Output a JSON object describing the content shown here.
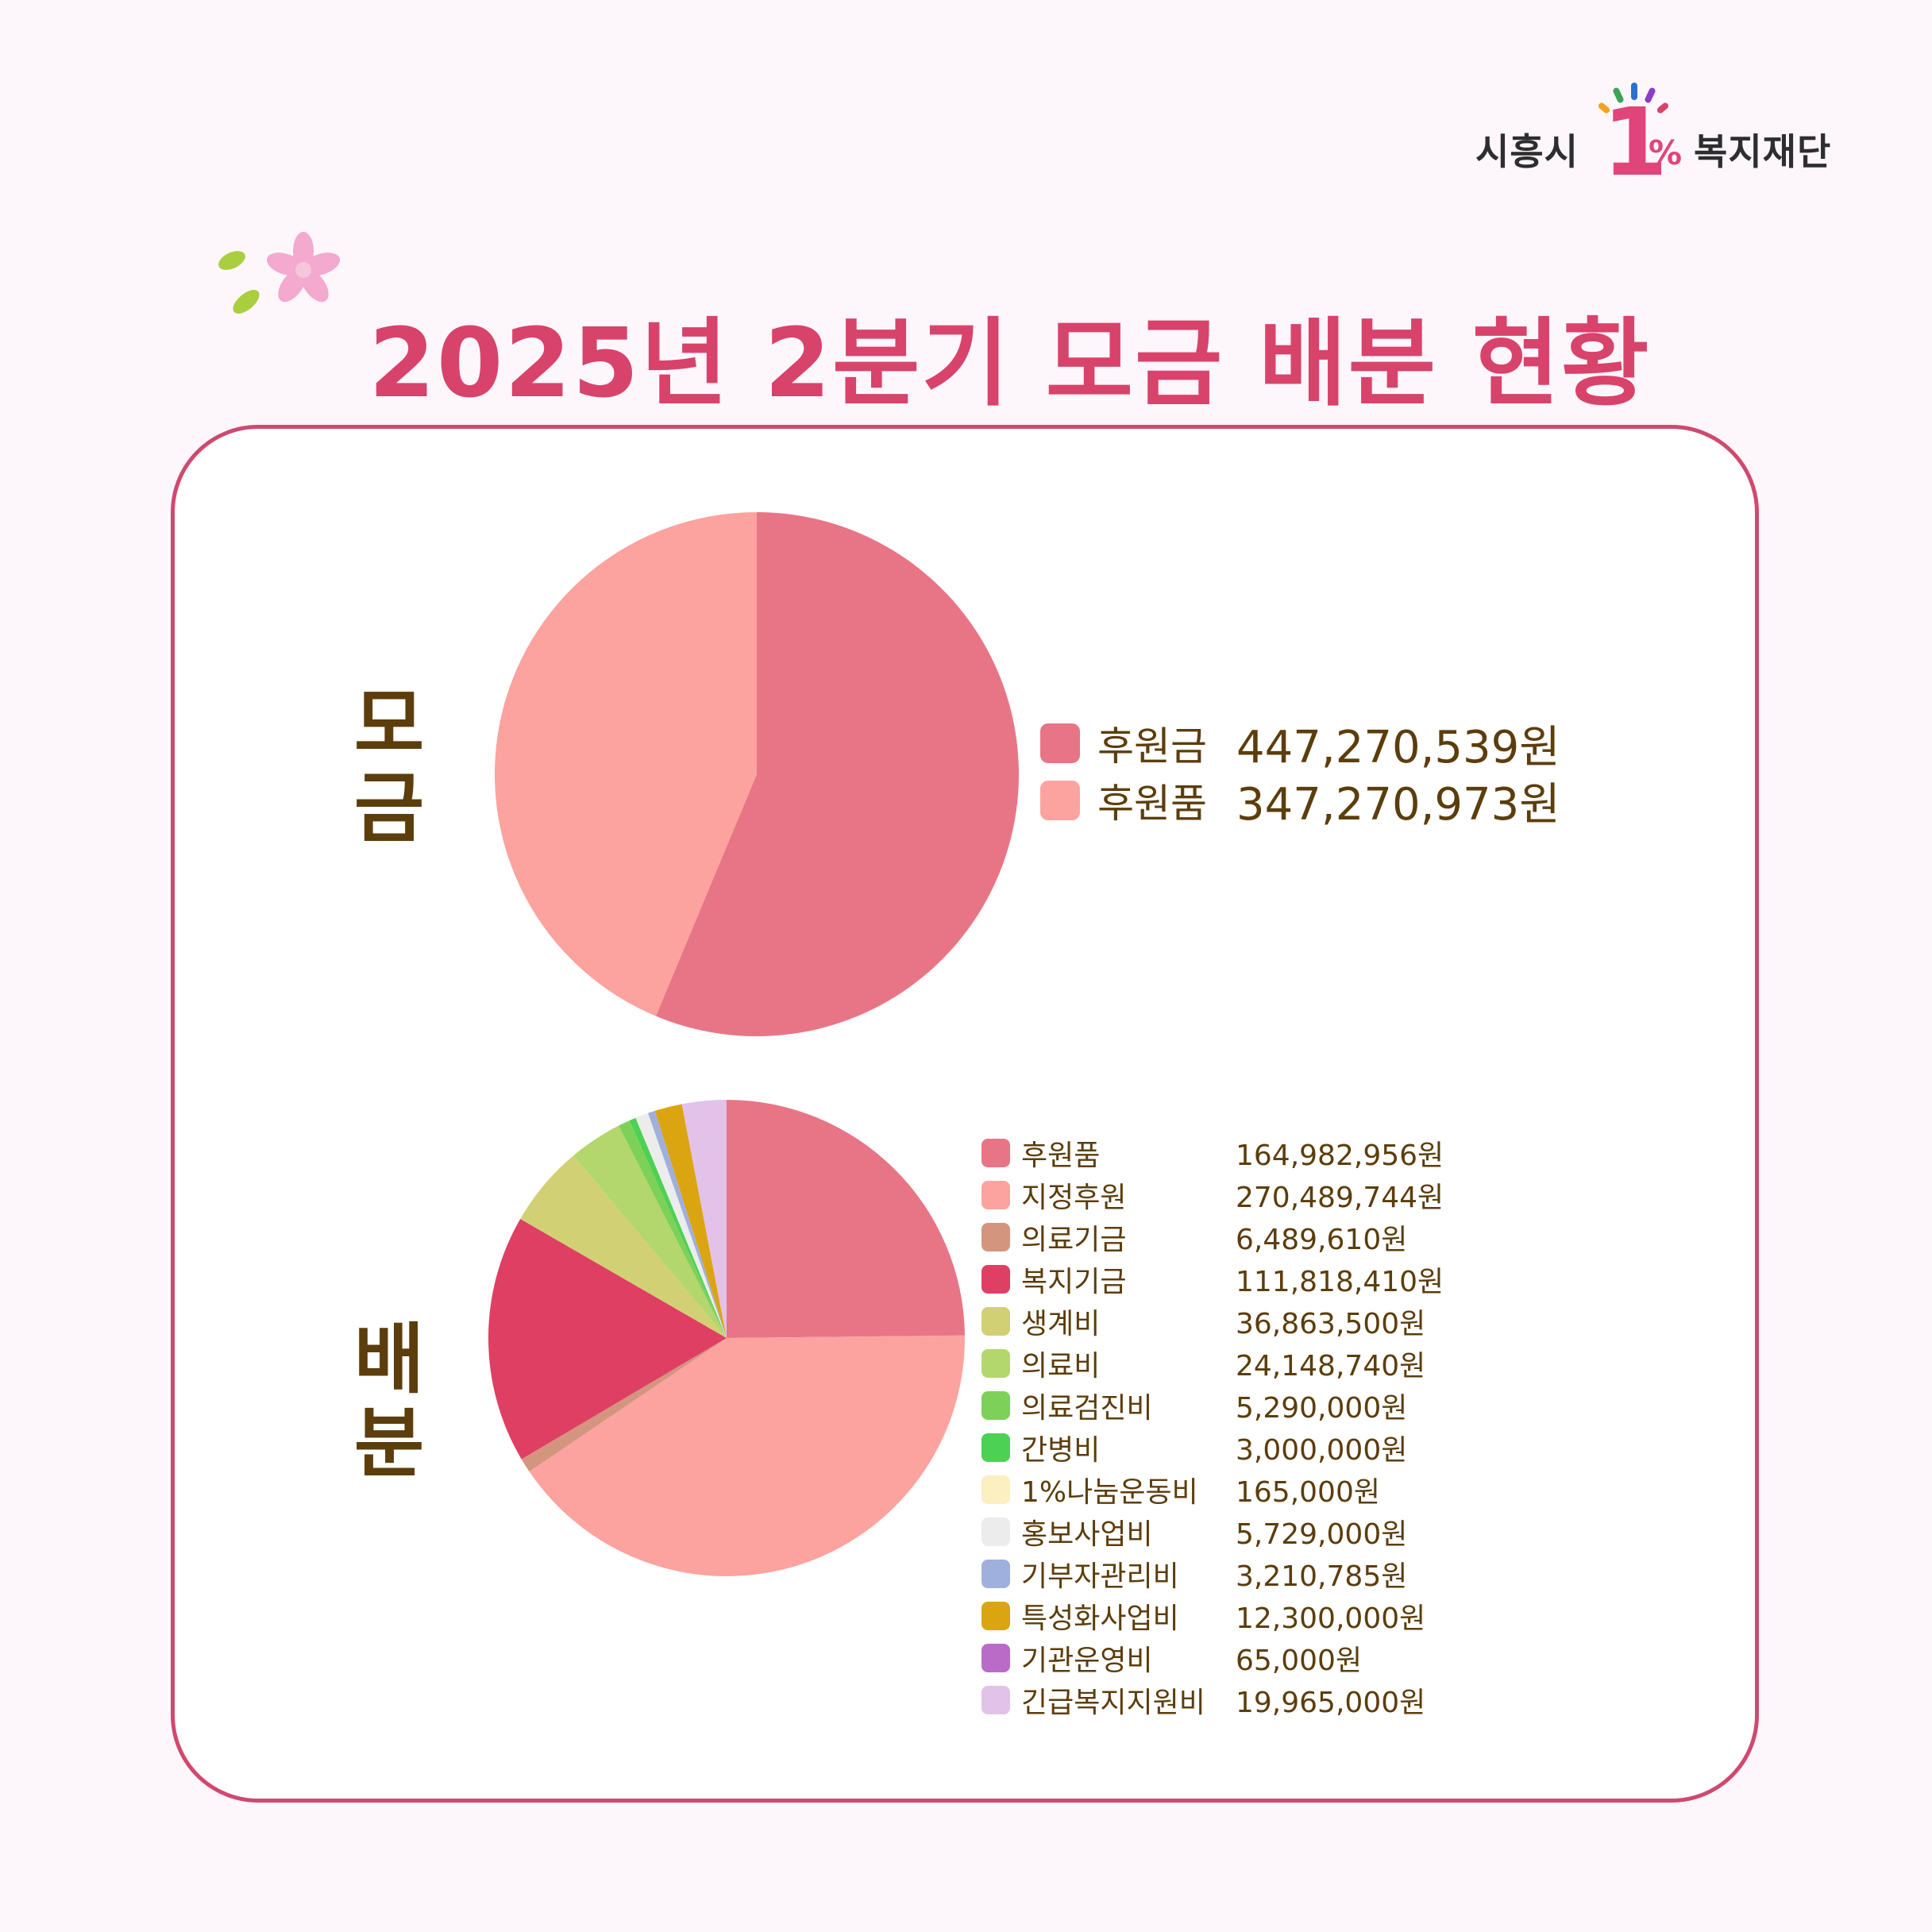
{
  "logo": {
    "left": "시흥시",
    "one": "1",
    "pct": "%",
    "right": "복지재단"
  },
  "title": "2025년 2분기 모금 배분 현황",
  "colors": {
    "accent": "#d8436b",
    "border": "#d0496f",
    "label_text": "#5c3d0c"
  },
  "chart_data": [
    {
      "type": "pie",
      "section_label": "모금",
      "categories": [
        "후원금",
        "후원품"
      ],
      "values": [
        447270539,
        347270973
      ],
      "value_labels": [
        "447,270,539원",
        "347,270,973원"
      ],
      "colors": [
        "#e87586",
        "#fca39f"
      ],
      "legend_position": "right"
    },
    {
      "type": "pie",
      "section_label": "배분",
      "categories": [
        "후원품",
        "지정후원",
        "의료기금",
        "복지기금",
        "생계비",
        "의료비",
        "의료검진비",
        "간병비",
        "1%나눔운동비",
        "홍보사업비",
        "기부자관리비",
        "특성화사업비",
        "기관운영비",
        "긴급복지지원비"
      ],
      "values": [
        164982956,
        270489744,
        6489610,
        111818410,
        36863500,
        24148740,
        5290000,
        3000000,
        165000,
        5729000,
        3210785,
        12300000,
        65000,
        19965000
      ],
      "value_labels": [
        "164,982,956원",
        "270,489,744원",
        "6,489,610원",
        "111,818,410원",
        "36,863,500원",
        "24,148,740원",
        "5,290,000원",
        "3,000,000원",
        "165,000원",
        "5,729,000원",
        "3,210,785원",
        "12,300,000원",
        "65,000원",
        "19,965,000원"
      ],
      "colors": [
        "#e87586",
        "#fca39f",
        "#d4957f",
        "#df3f62",
        "#d2d074",
        "#b3d76d",
        "#7dd159",
        "#4dd154",
        "#fcefc0",
        "#ececec",
        "#9fb0dd",
        "#dba512",
        "#b96bc8",
        "#e2c2e8"
      ],
      "legend_position": "right"
    }
  ]
}
